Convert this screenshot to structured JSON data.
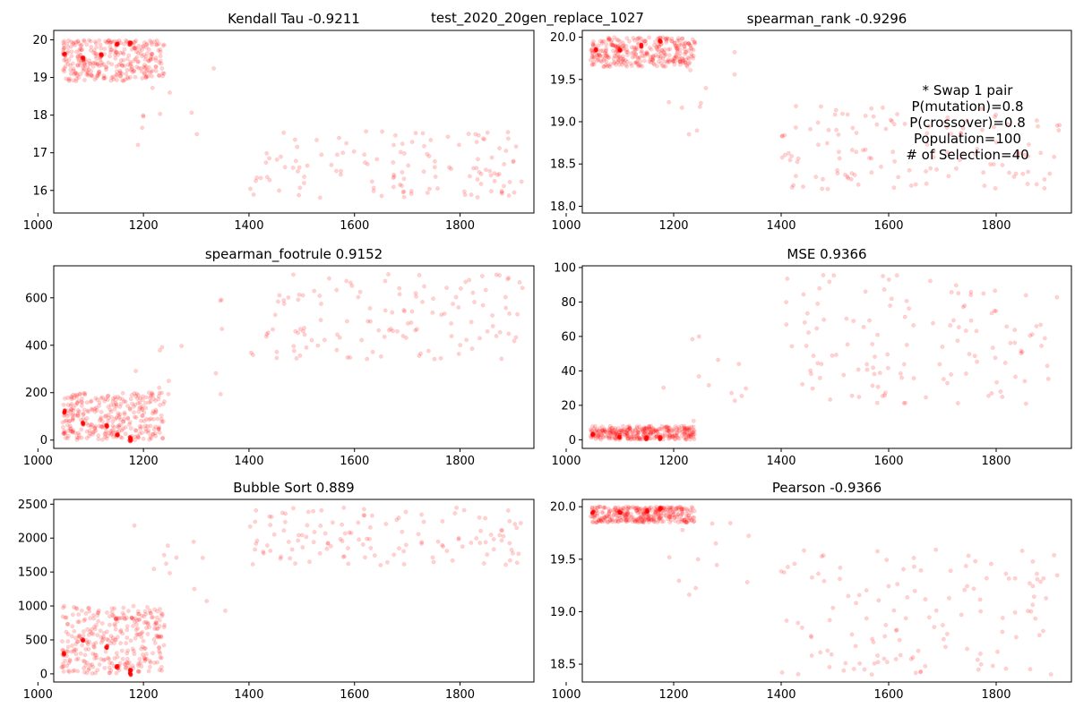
{
  "figure": {
    "suptitle": "test_2020_20gen_replace_1027",
    "marker_color": "#ff0000"
  },
  "annotation": {
    "lines": [
      "* Swap 1 pair",
      "P(mutation)=0.8",
      "P(crossover)=0.8",
      "Population=100",
      "# of Selection=40"
    ]
  },
  "chart_data": [
    {
      "type": "scatter",
      "title": "Kendall Tau -0.9211",
      "xlabel": "",
      "ylabel": "",
      "xlim": [
        1030,
        1940
      ],
      "ylim": [
        15.4,
        20.25
      ],
      "xticks": [
        1000,
        1200,
        1400,
        1600,
        1800
      ],
      "yticks": [
        16,
        17,
        18,
        19,
        20
      ],
      "ytick_format": "0",
      "grid": false,
      "clusters": [
        {
          "x_range": [
            1045,
            1240
          ],
          "y_range": [
            18.9,
            20.0
          ],
          "count": 320
        },
        {
          "x_range": [
            1180,
            1360
          ],
          "y_range": [
            17.2,
            19.3
          ],
          "count": 12
        },
        {
          "x_range": [
            1400,
            1920
          ],
          "y_range": [
            15.8,
            17.6
          ],
          "count": 130
        }
      ],
      "dense_points": [
        [
          1050,
          19.6
        ],
        [
          1085,
          19.5
        ],
        [
          1120,
          19.6
        ],
        [
          1150,
          19.9
        ],
        [
          1175,
          19.9
        ]
      ]
    },
    {
      "type": "scatter",
      "title": "spearman_rank -0.9296",
      "xlabel": "",
      "ylabel": "",
      "xlim": [
        1030,
        1940
      ],
      "ylim": [
        17.92,
        20.08
      ],
      "xticks": [
        1000,
        1200,
        1400,
        1600,
        1800
      ],
      "yticks": [
        18.0,
        18.5,
        19.0,
        19.5,
        20.0
      ],
      "ytick_format": "0.0",
      "grid": false,
      "clusters": [
        {
          "x_range": [
            1045,
            1240
          ],
          "y_range": [
            19.65,
            20.0
          ],
          "count": 320
        },
        {
          "x_range": [
            1180,
            1360
          ],
          "y_range": [
            18.6,
            19.9
          ],
          "count": 12
        },
        {
          "x_range": [
            1400,
            1920
          ],
          "y_range": [
            18.2,
            19.2
          ],
          "count": 130
        }
      ],
      "dense_points": [
        [
          1055,
          19.85
        ],
        [
          1100,
          19.85
        ],
        [
          1140,
          19.9
        ],
        [
          1175,
          19.95
        ]
      ]
    },
    {
      "type": "scatter",
      "title": "spearman_footrule 0.9152",
      "xlabel": "",
      "ylabel": "",
      "xlim": [
        1030,
        1940
      ],
      "ylim": [
        -35,
        735
      ],
      "xticks": [
        1000,
        1200,
        1400,
        1600,
        1800
      ],
      "yticks": [
        0,
        200,
        400,
        600
      ],
      "ytick_format": "0",
      "grid": false,
      "clusters": [
        {
          "x_range": [
            1045,
            1240
          ],
          "y_range": [
            0,
            200
          ],
          "count": 320
        },
        {
          "x_range": [
            1180,
            1360
          ],
          "y_range": [
            150,
            600
          ],
          "count": 12
        },
        {
          "x_range": [
            1400,
            1920
          ],
          "y_range": [
            340,
            700
          ],
          "count": 130
        }
      ],
      "dense_points": [
        [
          1050,
          120
        ],
        [
          1085,
          70
        ],
        [
          1130,
          60
        ],
        [
          1150,
          20
        ],
        [
          1175,
          10
        ],
        [
          1175,
          0
        ]
      ]
    },
    {
      "type": "scatter",
      "title": "MSE 0.9366",
      "xlabel": "",
      "ylabel": "",
      "xlim": [
        1030,
        1940
      ],
      "ylim": [
        -5,
        101
      ],
      "xticks": [
        1000,
        1200,
        1400,
        1600,
        1800
      ],
      "yticks": [
        0,
        20,
        40,
        60,
        80,
        100
      ],
      "ytick_format": "0",
      "grid": false,
      "clusters": [
        {
          "x_range": [
            1045,
            1240
          ],
          "y_range": [
            0,
            8
          ],
          "count": 320
        },
        {
          "x_range": [
            1180,
            1360
          ],
          "y_range": [
            5,
            60
          ],
          "count": 12
        },
        {
          "x_range": [
            1400,
            1920
          ],
          "y_range": [
            20,
            96
          ],
          "count": 130
        }
      ],
      "dense_points": [
        [
          1050,
          3
        ],
        [
          1100,
          2
        ],
        [
          1150,
          1
        ],
        [
          1175,
          1
        ]
      ]
    },
    {
      "type": "scatter",
      "title": "Bubble Sort 0.889",
      "xlabel": "",
      "ylabel": "",
      "xlim": [
        1030,
        1940
      ],
      "ylim": [
        -120,
        2570
      ],
      "xticks": [
        1000,
        1200,
        1400,
        1600,
        1800
      ],
      "yticks": [
        0,
        500,
        1000,
        1500,
        2000,
        2500
      ],
      "ytick_format": "0",
      "grid": false,
      "clusters": [
        {
          "x_range": [
            1045,
            1240
          ],
          "y_range": [
            0,
            1000
          ],
          "count": 320
        },
        {
          "x_range": [
            1180,
            1360
          ],
          "y_range": [
            800,
            2200
          ],
          "count": 12
        },
        {
          "x_range": [
            1400,
            1920
          ],
          "y_range": [
            1600,
            2450
          ],
          "count": 130
        }
      ],
      "dense_points": [
        [
          1050,
          300
        ],
        [
          1085,
          500
        ],
        [
          1130,
          400
        ],
        [
          1150,
          100
        ],
        [
          1175,
          50
        ],
        [
          1175,
          0
        ]
      ]
    },
    {
      "type": "scatter",
      "title": "Pearson -0.9366",
      "xlabel": "",
      "ylabel": "",
      "xlim": [
        1030,
        1940
      ],
      "ylim": [
        18.33,
        20.07
      ],
      "xticks": [
        1000,
        1200,
        1400,
        1600,
        1800
      ],
      "yticks": [
        18.5,
        19.0,
        19.5,
        20.0
      ],
      "ytick_format": "0.0",
      "grid": false,
      "clusters": [
        {
          "x_range": [
            1045,
            1240
          ],
          "y_range": [
            19.85,
            20.0
          ],
          "count": 320
        },
        {
          "x_range": [
            1180,
            1360
          ],
          "y_range": [
            19.0,
            19.9
          ],
          "count": 12
        },
        {
          "x_range": [
            1400,
            1920
          ],
          "y_range": [
            18.4,
            19.6
          ],
          "count": 130
        }
      ],
      "dense_points": [
        [
          1050,
          19.95
        ],
        [
          1100,
          19.95
        ],
        [
          1150,
          19.96
        ],
        [
          1175,
          19.98
        ]
      ]
    }
  ]
}
